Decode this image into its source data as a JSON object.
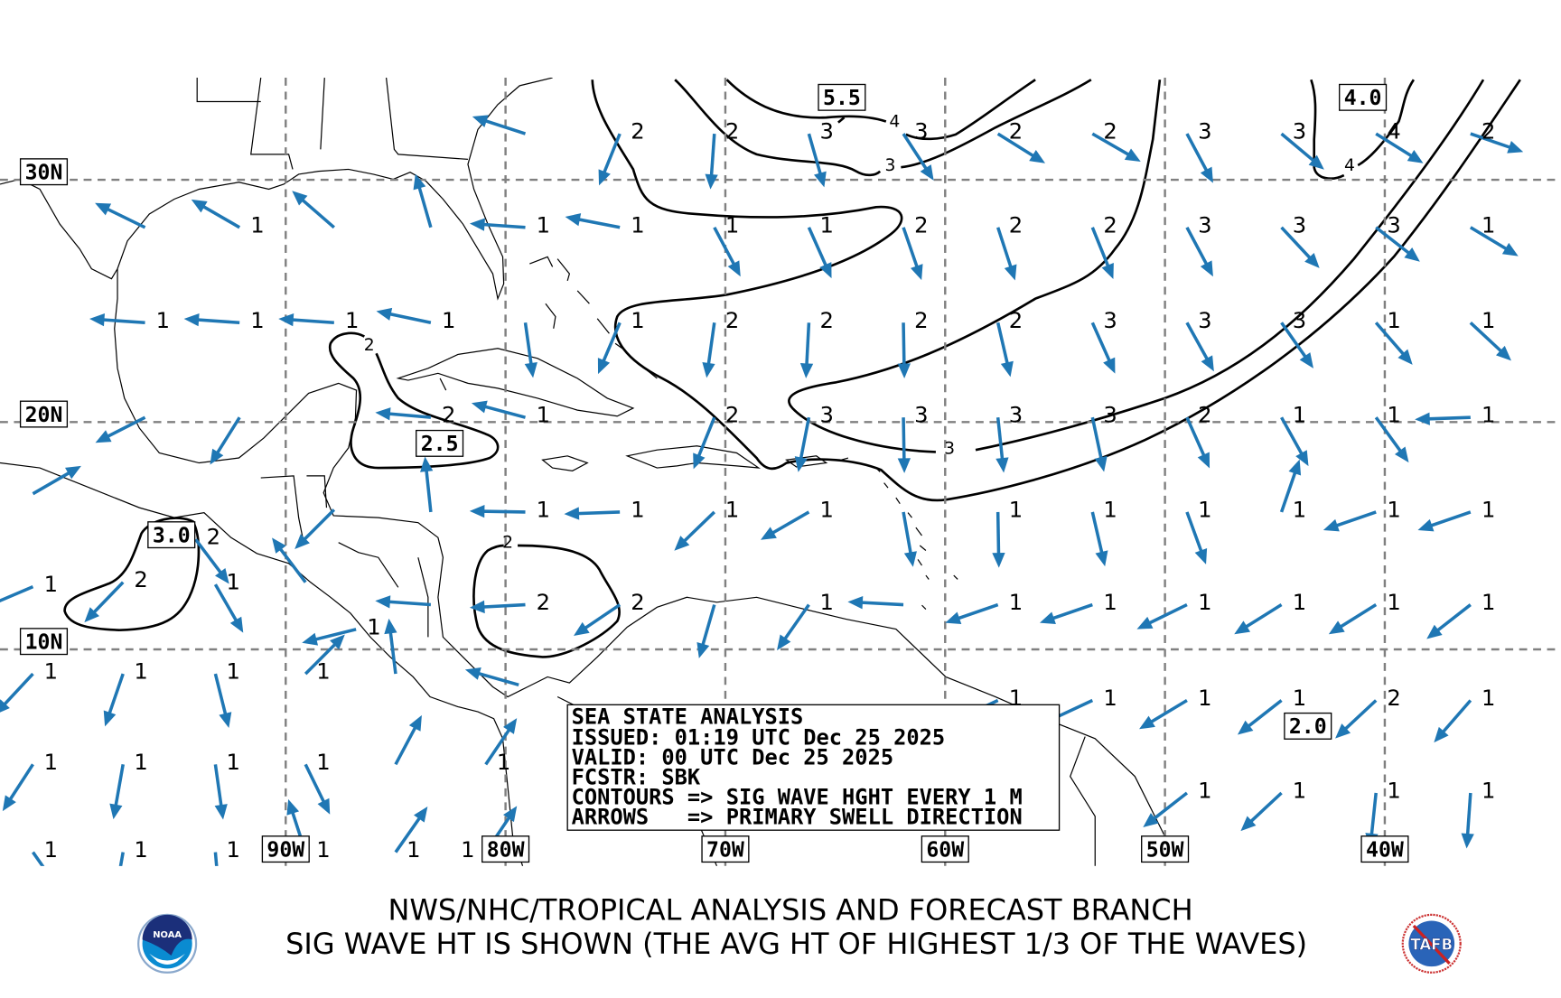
{
  "header": {
    "title_line1": "NWS/NHC/TROPICAL ANALYSIS AND FORECAST BRANCH",
    "title_line2": "SIG WAVE HT IS SHOWN (THE AVG HT OF HIGHEST 1/3 OF THE WAVES)"
  },
  "info_box": {
    "line1": "SEA STATE ANALYSIS",
    "line2": "ISSUED: 01:19 UTC Dec 25 2025",
    "line3": "VALID: 00 UTC Dec 25 2025",
    "line4": "FCSTR: SBK",
    "line5": "CONTOURS => SIG WAVE HGHT EVERY 1 M",
    "line6": "ARROWS   => PRIMARY SWELL DIRECTION"
  },
  "logos": {
    "left": "NOAA",
    "right": "TAFB"
  },
  "colors": {
    "arrow": "#1f77b4",
    "grid": "#808080",
    "contour": "#000000"
  },
  "grid_labels": {
    "lat": [
      {
        "label": "30N",
        "lat": 30
      },
      {
        "label": "20N",
        "lat": 20
      },
      {
        "label": "10N",
        "lat": 10
      }
    ],
    "lon": [
      {
        "label": "90W",
        "lon": -90
      },
      {
        "label": "80W",
        "lon": -80
      },
      {
        "label": "70W",
        "lon": -70
      },
      {
        "label": "60W",
        "lon": -60
      },
      {
        "label": "50W",
        "lon": -50
      },
      {
        "label": "40W",
        "lon": -40
      }
    ]
  },
  "max_labels": [
    {
      "value": "5.5",
      "lon": -64.7,
      "lat": 33.2
    },
    {
      "value": "4.0",
      "lon": -41.0,
      "lat": 33.2
    },
    {
      "value": "2.5",
      "lon": -83.0,
      "lat": 19.6
    },
    {
      "value": "3.0",
      "lon": -95.2,
      "lat": 15.1
    },
    {
      "value": "2.0",
      "lon": -43.5,
      "lat": 6.9
    }
  ],
  "contour_labels": [
    {
      "value": "4",
      "lon": -62.3,
      "lat": 32.3
    },
    {
      "value": "3",
      "lon": -62.5,
      "lat": 30.6
    },
    {
      "value": "3",
      "lon": -59.8,
      "lat": 18.9
    },
    {
      "value": "4",
      "lon": -41.6,
      "lat": 30.6
    },
    {
      "value": "2",
      "lon": -86.2,
      "lat": 23.3
    },
    {
      "value": "2",
      "lon": -79.9,
      "lat": 14.8
    }
  ],
  "points": [
    {
      "h": "",
      "lon": -79.1,
      "lat": 31.8,
      "dir": 288
    },
    {
      "h": "2",
      "lon": -74.8,
      "lat": 31.8,
      "dir": 202
    },
    {
      "h": "2",
      "lon": -70.5,
      "lat": 31.8,
      "dir": 184
    },
    {
      "h": "3",
      "lon": -66.2,
      "lat": 31.8,
      "dir": 164
    },
    {
      "h": "3",
      "lon": -61.9,
      "lat": 31.8,
      "dir": 147
    },
    {
      "h": "2",
      "lon": -57.6,
      "lat": 31.8,
      "dir": 122
    },
    {
      "h": "2",
      "lon": -53.3,
      "lat": 31.8,
      "dir": 120
    },
    {
      "h": "3",
      "lon": -49.0,
      "lat": 31.8,
      "dir": 152
    },
    {
      "h": "3",
      "lon": -44.7,
      "lat": 31.8,
      "dir": 130
    },
    {
      "h": "4",
      "lon": -40.4,
      "lat": 31.8,
      "dir": 122
    },
    {
      "h": "2",
      "lon": -36.1,
      "lat": 31.8,
      "dir": 109
    },
    {
      "h": "",
      "lon": -96.4,
      "lat": 28.1,
      "dir": 296
    },
    {
      "h": "1",
      "lon": -92.1,
      "lat": 28.1,
      "dir": 300
    },
    {
      "h": "",
      "lon": -87.8,
      "lat": 28.1,
      "dir": 311
    },
    {
      "h": "",
      "lon": -83.4,
      "lat": 28.1,
      "dir": 344
    },
    {
      "h": "1",
      "lon": -79.1,
      "lat": 28.1,
      "dir": 274
    },
    {
      "h": "1",
      "lon": -74.8,
      "lat": 28.1,
      "dir": 281
    },
    {
      "h": "1",
      "lon": -70.5,
      "lat": 28.1,
      "dir": 152
    },
    {
      "h": "1",
      "lon": -66.2,
      "lat": 28.1,
      "dir": 156
    },
    {
      "h": "2",
      "lon": -61.9,
      "lat": 28.1,
      "dir": 161
    },
    {
      "h": "2",
      "lon": -57.6,
      "lat": 28.1,
      "dir": 162
    },
    {
      "h": "2",
      "lon": -53.3,
      "lat": 28.1,
      "dir": 158
    },
    {
      "h": "3",
      "lon": -49.0,
      "lat": 28.1,
      "dir": 152
    },
    {
      "h": "3",
      "lon": -44.7,
      "lat": 28.1,
      "dir": 137
    },
    {
      "h": "3",
      "lon": -40.4,
      "lat": 28.1,
      "dir": 128
    },
    {
      "h": "1",
      "lon": -36.1,
      "lat": 28.1,
      "dir": 121
    },
    {
      "h": "1",
      "lon": -96.4,
      "lat": 24.2,
      "dir": 274
    },
    {
      "h": "1",
      "lon": -92.1,
      "lat": 24.2,
      "dir": 274
    },
    {
      "h": "1",
      "lon": -87.8,
      "lat": 24.2,
      "dir": 274
    },
    {
      "h": "1",
      "lon": -83.4,
      "lat": 24.2,
      "dir": 282
    },
    {
      "h": "",
      "lon": -79.1,
      "lat": 24.2,
      "dir": 172
    },
    {
      "h": "1",
      "lon": -74.8,
      "lat": 24.2,
      "dir": 203
    },
    {
      "h": "2",
      "lon": -70.5,
      "lat": 24.2,
      "dir": 188
    },
    {
      "h": "2",
      "lon": -66.2,
      "lat": 24.2,
      "dir": 183
    },
    {
      "h": "2",
      "lon": -61.9,
      "lat": 24.2,
      "dir": 179
    },
    {
      "h": "2",
      "lon": -57.6,
      "lat": 24.2,
      "dir": 167
    },
    {
      "h": "3",
      "lon": -53.3,
      "lat": 24.2,
      "dir": 156
    },
    {
      "h": "3",
      "lon": -49.0,
      "lat": 24.2,
      "dir": 151
    },
    {
      "h": "3",
      "lon": -44.7,
      "lat": 24.2,
      "dir": 145
    },
    {
      "h": "1",
      "lon": -40.4,
      "lat": 24.2,
      "dir": 139
    },
    {
      "h": "1",
      "lon": -36.1,
      "lat": 24.2,
      "dir": 133
    },
    {
      "h": "",
      "lon": -96.4,
      "lat": 20.2,
      "dir": 243
    },
    {
      "h": "",
      "lon": -92.1,
      "lat": 20.2,
      "dir": 212
    },
    {
      "h": "2",
      "lon": -83.4,
      "lat": 20.2,
      "dir": 275
    },
    {
      "h": "1",
      "lon": -79.1,
      "lat": 20.2,
      "dir": 285
    },
    {
      "h": "2",
      "lon": -70.5,
      "lat": 20.2,
      "dir": 202
    },
    {
      "h": "3",
      "lon": -66.2,
      "lat": 20.2,
      "dir": 191
    },
    {
      "h": "3",
      "lon": -61.9,
      "lat": 20.2,
      "dir": 179
    },
    {
      "h": "3",
      "lon": -57.6,
      "lat": 20.2,
      "dir": 174
    },
    {
      "h": "3",
      "lon": -53.3,
      "lat": 20.2,
      "dir": 168
    },
    {
      "h": "2",
      "lon": -49.0,
      "lat": 20.2,
      "dir": 156
    },
    {
      "h": "1",
      "lon": -44.7,
      "lat": 20.2,
      "dir": 151
    },
    {
      "h": "1",
      "lon": -40.4,
      "lat": 20.2,
      "dir": 144
    },
    {
      "h": "1",
      "lon": -36.1,
      "lat": 20.2,
      "dir": 268
    },
    {
      "h": "",
      "lon": -83.4,
      "lat": 16.1,
      "dir": 354
    },
    {
      "h": "1",
      "lon": -79.1,
      "lat": 16.1,
      "dir": 271
    },
    {
      "h": "1",
      "lon": -74.8,
      "lat": 16.1,
      "dir": 268
    },
    {
      "h": "1",
      "lon": -70.5,
      "lat": 16.1,
      "dir": 226
    },
    {
      "h": "1",
      "lon": -66.2,
      "lat": 16.1,
      "dir": 240
    },
    {
      "h": "",
      "lon": -61.9,
      "lat": 16.1,
      "dir": 170
    },
    {
      "h": "1",
      "lon": -57.6,
      "lat": 16.1,
      "dir": 179
    },
    {
      "h": "1",
      "lon": -53.3,
      "lat": 16.1,
      "dir": 167
    },
    {
      "h": "1",
      "lon": -49.0,
      "lat": 16.1,
      "dir": 160
    },
    {
      "h": "1",
      "lon": -44.7,
      "lat": 16.1,
      "dir": 19
    },
    {
      "h": "1",
      "lon": -40.4,
      "lat": 16.1,
      "dir": 251
    },
    {
      "h": "1",
      "lon": -36.1,
      "lat": 16.1,
      "dir": 251
    },
    {
      "h": "",
      "lon": -83.4,
      "lat": 12.0,
      "dir": 274
    },
    {
      "h": "2",
      "lon": -79.1,
      "lat": 12.0,
      "dir": 267
    },
    {
      "h": "2",
      "lon": -74.8,
      "lat": 12.0,
      "dir": 236
    },
    {
      "h": "",
      "lon": -70.5,
      "lat": 12.0,
      "dir": 196
    },
    {
      "h": "1",
      "lon": -66.2,
      "lat": 12.0,
      "dir": 215
    },
    {
      "h": "",
      "lon": -61.9,
      "lat": 12.0,
      "dir": 273
    },
    {
      "h": "1",
      "lon": -57.6,
      "lat": 12.0,
      "dir": 251
    },
    {
      "h": "1",
      "lon": -53.3,
      "lat": 12.0,
      "dir": 251
    },
    {
      "h": "1",
      "lon": -49.0,
      "lat": 12.0,
      "dir": 244
    },
    {
      "h": "1",
      "lon": -44.7,
      "lat": 12.0,
      "dir": 238
    },
    {
      "h": "1",
      "lon": -40.4,
      "lat": 12.0,
      "dir": 238
    },
    {
      "h": "1",
      "lon": -36.1,
      "lat": 12.0,
      "dir": 232
    },
    {
      "h": "1",
      "lon": -57.6,
      "lat": 7.7,
      "dir": 245
    },
    {
      "h": "1",
      "lon": -53.3,
      "lat": 7.7,
      "dir": 245
    },
    {
      "h": "1",
      "lon": -49.0,
      "lat": 7.7,
      "dir": 239
    },
    {
      "h": "1",
      "lon": -44.7,
      "lat": 7.7,
      "dir": 232
    },
    {
      "h": "2",
      "lon": -40.4,
      "lat": 7.7,
      "dir": 227
    },
    {
      "h": "1",
      "lon": -36.1,
      "lat": 7.7,
      "dir": 221
    },
    {
      "h": "1",
      "lon": -49.0,
      "lat": 3.5,
      "dir": 232
    },
    {
      "h": "1",
      "lon": -44.7,
      "lat": 3.5,
      "dir": 227
    },
    {
      "h": "1",
      "lon": -40.4,
      "lat": 3.5,
      "dir": 186
    },
    {
      "h": "1",
      "lon": -36.1,
      "lat": 3.5,
      "dir": 184
    },
    {
      "h": "",
      "lon": -101.5,
      "lat": 16.9,
      "dir": 60
    },
    {
      "h": "2",
      "lon": -94.1,
      "lat": 14.9,
      "dir": 143
    },
    {
      "h": "1",
      "lon": -101.5,
      "lat": 12.8,
      "dir": 247
    },
    {
      "h": "2",
      "lon": -97.4,
      "lat": 13.0,
      "dir": 224
    },
    {
      "h": "1",
      "lon": -93.2,
      "lat": 12.9,
      "dir": 150
    },
    {
      "h": "",
      "lon": -89.1,
      "lat": 13.0,
      "dir": 323
    },
    {
      "h": "",
      "lon": -87.8,
      "lat": 16.2,
      "dir": 225
    },
    {
      "h": "1",
      "lon": -86.8,
      "lat": 10.9,
      "dir": 256
    },
    {
      "h": "",
      "lon": -85.0,
      "lat": 8.9,
      "dir": 353
    },
    {
      "h": "",
      "lon": -79.4,
      "lat": 8.4,
      "dir": 286
    },
    {
      "h": "1",
      "lon": -101.5,
      "lat": 8.9,
      "dir": 223
    },
    {
      "h": "1",
      "lon": -97.4,
      "lat": 8.9,
      "dir": 199
    },
    {
      "h": "1",
      "lon": -93.2,
      "lat": 8.9,
      "dir": 166
    },
    {
      "h": "1",
      "lon": -89.1,
      "lat": 8.9,
      "dir": 45
    },
    {
      "h": "1",
      "lon": -101.5,
      "lat": 4.8,
      "dir": 213
    },
    {
      "h": "1",
      "lon": -97.4,
      "lat": 4.8,
      "dir": 190
    },
    {
      "h": "1",
      "lon": -93.2,
      "lat": 4.8,
      "dir": 172
    },
    {
      "h": "1",
      "lon": -89.1,
      "lat": 4.8,
      "dir": 154
    },
    {
      "h": "",
      "lon": -85.0,
      "lat": 4.8,
      "dir": 28
    },
    {
      "h": "1",
      "lon": -80.9,
      "lat": 4.8,
      "dir": 34
    },
    {
      "h": "1",
      "lon": -101.5,
      "lat": 0.8,
      "dir": 145
    },
    {
      "h": "1",
      "lon": -97.4,
      "lat": 0.8,
      "dir": 190
    },
    {
      "h": "1",
      "lon": -93.2,
      "lat": 0.8,
      "dir": 175
    },
    {
      "h": "1",
      "lon": -89.1,
      "lat": 0.8,
      "dir": 342
    },
    {
      "h": "1",
      "lon": -85.0,
      "lat": 0.8,
      "dir": 35
    },
    {
      "h": "1",
      "lon": -80.9,
      "lat": 0.8,
      "dir": 34
    }
  ]
}
